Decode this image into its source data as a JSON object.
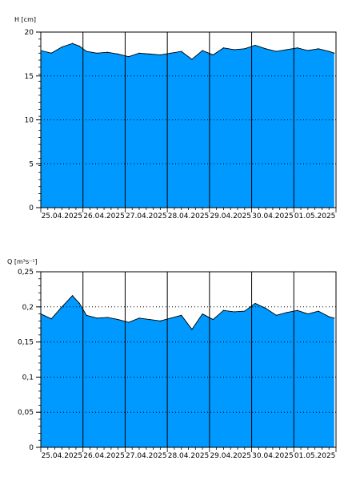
{
  "chart_data": [
    {
      "type": "area",
      "ylabel": "H [cm]",
      "ylim": [
        0,
        20
      ],
      "yticks": [
        0,
        5,
        10,
        15,
        20
      ],
      "ytick_labels": [
        "0",
        "5",
        "10",
        "15",
        "20"
      ],
      "xlim": [
        "2025-04-25 00:00",
        "2025-05-02 00:00"
      ],
      "xtick_labels": [
        "25.04.2025",
        "26.04.2025",
        "27.04.2025",
        "28.04.2025",
        "29.04.2025",
        "30.04.2025",
        "01.05.2025"
      ],
      "day_boundaries": [
        "2025-04-26",
        "2025-04-27",
        "2025-04-28",
        "2025-04-29",
        "2025-04-30",
        "2025-05-01"
      ],
      "grid": "horizontal dotted",
      "fill_color": "#0099ff",
      "series": [
        {
          "x": [
            "2025-04-25 00:00",
            "2025-04-25 06:00",
            "2025-04-25 12:00",
            "2025-04-25 18:00",
            "2025-04-25 22:00",
            "2025-04-26 02:00",
            "2025-04-26 08:00",
            "2025-04-26 14:00",
            "2025-04-26 20:00",
            "2025-04-27 02:00",
            "2025-04-27 08:00",
            "2025-04-27 14:00",
            "2025-04-27 20:00",
            "2025-04-28 02:00",
            "2025-04-28 08:00",
            "2025-04-28 14:00",
            "2025-04-28 20:00",
            "2025-04-29 02:00",
            "2025-04-29 08:00",
            "2025-04-29 14:00",
            "2025-04-29 20:00",
            "2025-04-30 02:00",
            "2025-04-30 08:00",
            "2025-04-30 14:00",
            "2025-04-30 20:00",
            "2025-05-01 02:00",
            "2025-05-01 08:00",
            "2025-05-01 14:00",
            "2025-05-01 20:00",
            "2025-05-01 23:00"
          ],
          "values": [
            17.9,
            17.6,
            18.3,
            18.7,
            18.4,
            17.8,
            17.6,
            17.7,
            17.5,
            17.2,
            17.6,
            17.5,
            17.4,
            17.6,
            17.8,
            16.9,
            17.9,
            17.4,
            18.2,
            18.0,
            18.1,
            18.5,
            18.1,
            17.8,
            18.0,
            18.2,
            17.9,
            18.1,
            17.8,
            17.6
          ]
        }
      ]
    },
    {
      "type": "area",
      "ylabel": "Q [m³s⁻¹]",
      "ylim": [
        0,
        0.25
      ],
      "yticks": [
        0,
        0.05,
        0.1,
        0.15,
        0.2,
        0.25
      ],
      "ytick_labels": [
        "0",
        "0,05",
        "0,1",
        "0,15",
        "0,2",
        "0,25"
      ],
      "xlim": [
        "2025-04-25 00:00",
        "2025-05-02 00:00"
      ],
      "xtick_labels": [
        "25.04.2025",
        "26.04.2025",
        "27.04.2025",
        "28.04.2025",
        "29.04.2025",
        "30.04.2025",
        "01.05.2025"
      ],
      "day_boundaries": [
        "2025-04-26",
        "2025-04-27",
        "2025-04-28",
        "2025-04-29",
        "2025-04-30",
        "2025-05-01"
      ],
      "grid": "horizontal dotted",
      "fill_color": "#0099ff",
      "series": [
        {
          "x": [
            "2025-04-25 00:00",
            "2025-04-25 06:00",
            "2025-04-25 12:00",
            "2025-04-25 18:00",
            "2025-04-25 22:00",
            "2025-04-26 02:00",
            "2025-04-26 08:00",
            "2025-04-26 14:00",
            "2025-04-26 20:00",
            "2025-04-27 02:00",
            "2025-04-27 08:00",
            "2025-04-27 14:00",
            "2025-04-27 20:00",
            "2025-04-28 02:00",
            "2025-04-28 08:00",
            "2025-04-28 14:00",
            "2025-04-28 20:00",
            "2025-04-29 02:00",
            "2025-04-29 08:00",
            "2025-04-29 14:00",
            "2025-04-29 20:00",
            "2025-04-30 02:00",
            "2025-04-30 08:00",
            "2025-04-30 14:00",
            "2025-04-30 20:00",
            "2025-05-01 02:00",
            "2025-05-01 08:00",
            "2025-05-01 14:00",
            "2025-05-01 20:00",
            "2025-05-01 23:00"
          ],
          "values": [
            0.19,
            0.183,
            0.2,
            0.216,
            0.205,
            0.188,
            0.184,
            0.185,
            0.182,
            0.178,
            0.184,
            0.182,
            0.18,
            0.184,
            0.188,
            0.168,
            0.19,
            0.182,
            0.195,
            0.193,
            0.194,
            0.205,
            0.198,
            0.188,
            0.192,
            0.195,
            0.19,
            0.194,
            0.186,
            0.184
          ]
        }
      ]
    }
  ]
}
